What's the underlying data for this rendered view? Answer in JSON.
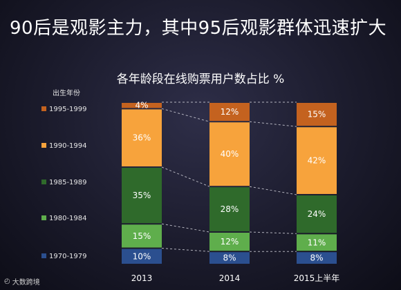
{
  "slide_title": "90后是观影主力，其中95后观影群体迅速扩大",
  "watermark": "大数跨境",
  "chart_data": {
    "type": "bar",
    "stacked": true,
    "title": "各年龄段在线购票用户数占比 %",
    "legend_title": "出生年份",
    "legend_placement": "left",
    "categories": [
      "2013",
      "2014",
      "2015上半年"
    ],
    "series": [
      {
        "name": "1970-1979",
        "color": "#2b4f8f",
        "values": [
          10,
          8,
          8
        ],
        "labels": [
          "10%",
          "8%",
          "8%"
        ]
      },
      {
        "name": "1980-1984",
        "color": "#5fae4c",
        "values": [
          15,
          12,
          11
        ],
        "labels": [
          "15%",
          "12%",
          "11%"
        ]
      },
      {
        "name": "1985-1989",
        "color": "#2f6a2b",
        "values": [
          35,
          28,
          24
        ],
        "labels": [
          "35%",
          "28%",
          "24%"
        ]
      },
      {
        "name": "1990-1994",
        "color": "#f7a33c",
        "values": [
          36,
          40,
          42
        ],
        "labels": [
          "36%",
          "40%",
          "42%"
        ]
      },
      {
        "name": "1995-1999",
        "color": "#c4621f",
        "values": [
          4,
          12,
          15
        ],
        "labels": [
          "4%",
          "12%",
          "15%"
        ]
      }
    ],
    "ylim": [
      0,
      100
    ],
    "connector_lines": "dashed"
  }
}
